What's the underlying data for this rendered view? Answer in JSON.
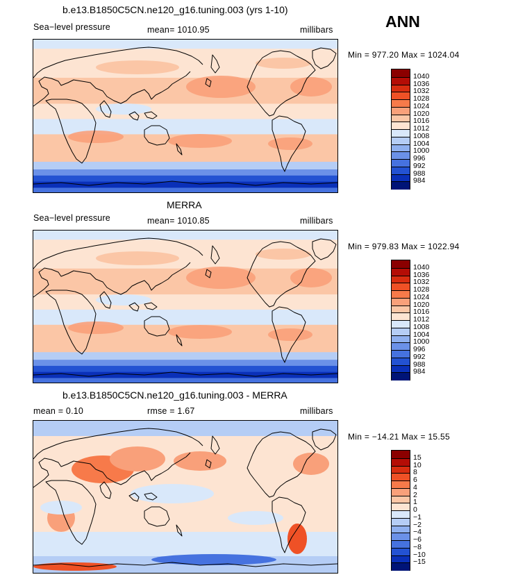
{
  "season_label": "ANN",
  "panels": [
    {
      "id": "model",
      "title": "b.e13.B1850C5CN.ne120_g16.tuning.003 (yrs 1-10)",
      "left_label": "Sea−level pressure",
      "center_label": "mean= 1010.95",
      "units": "millibars",
      "minmax": "Min = 977.20 Max = 1024.04",
      "colorbar_labels": [
        "1040",
        "1036",
        "1032",
        "1028",
        "1024",
        "1020",
        "1016",
        "1012",
        "1008",
        "1004",
        "1000",
        "996",
        "992",
        "988",
        "984"
      ],
      "colors": [
        "#8b0000",
        "#b40d06",
        "#d82d10",
        "#ef5126",
        "#f77a4a",
        "#f9a07a",
        "#fbc6a6",
        "#fde4d2",
        "#d9e8fa",
        "#b5cdf5",
        "#8fb0ef",
        "#6b91e8",
        "#4672df",
        "#2352d2",
        "#0a30b8",
        "#001477"
      ]
    },
    {
      "id": "obs",
      "title": "MERRA",
      "left_label": "Sea−level pressure",
      "center_label": "mean= 1010.85",
      "units": "millibars",
      "minmax": "Min = 979.83 Max = 1022.94",
      "colorbar_labels": [
        "1040",
        "1036",
        "1032",
        "1028",
        "1024",
        "1020",
        "1016",
        "1012",
        "1008",
        "1004",
        "1000",
        "996",
        "992",
        "988",
        "984"
      ],
      "colors": [
        "#8b0000",
        "#b40d06",
        "#d82d10",
        "#ef5126",
        "#f77a4a",
        "#f9a07a",
        "#fbc6a6",
        "#fde4d2",
        "#d9e8fa",
        "#b5cdf5",
        "#8fb0ef",
        "#6b91e8",
        "#4672df",
        "#2352d2",
        "#0a30b8",
        "#001477"
      ]
    },
    {
      "id": "diff",
      "title": "b.e13.B1850C5CN.ne120_g16.tuning.003 - MERRA",
      "left_label": "mean =    0.10",
      "center_label": "rmse =    1.67",
      "units": "millibars",
      "minmax": "Min = −14.21 Max =  15.55",
      "colorbar_labels": [
        "15",
        "10",
        "8",
        "6",
        "4",
        "2",
        "1",
        "0",
        "−1",
        "−2",
        "−4",
        "−6",
        "−8",
        "−10",
        "−15"
      ],
      "colors": [
        "#8b0000",
        "#b40d06",
        "#d82d10",
        "#ef5126",
        "#f77a4a",
        "#f9a07a",
        "#fbc6a6",
        "#fde4d2",
        "#d9e8fa",
        "#b5cdf5",
        "#8fb0ef",
        "#6b91e8",
        "#4672df",
        "#2352d2",
        "#0a30b8",
        "#001477"
      ]
    }
  ]
}
